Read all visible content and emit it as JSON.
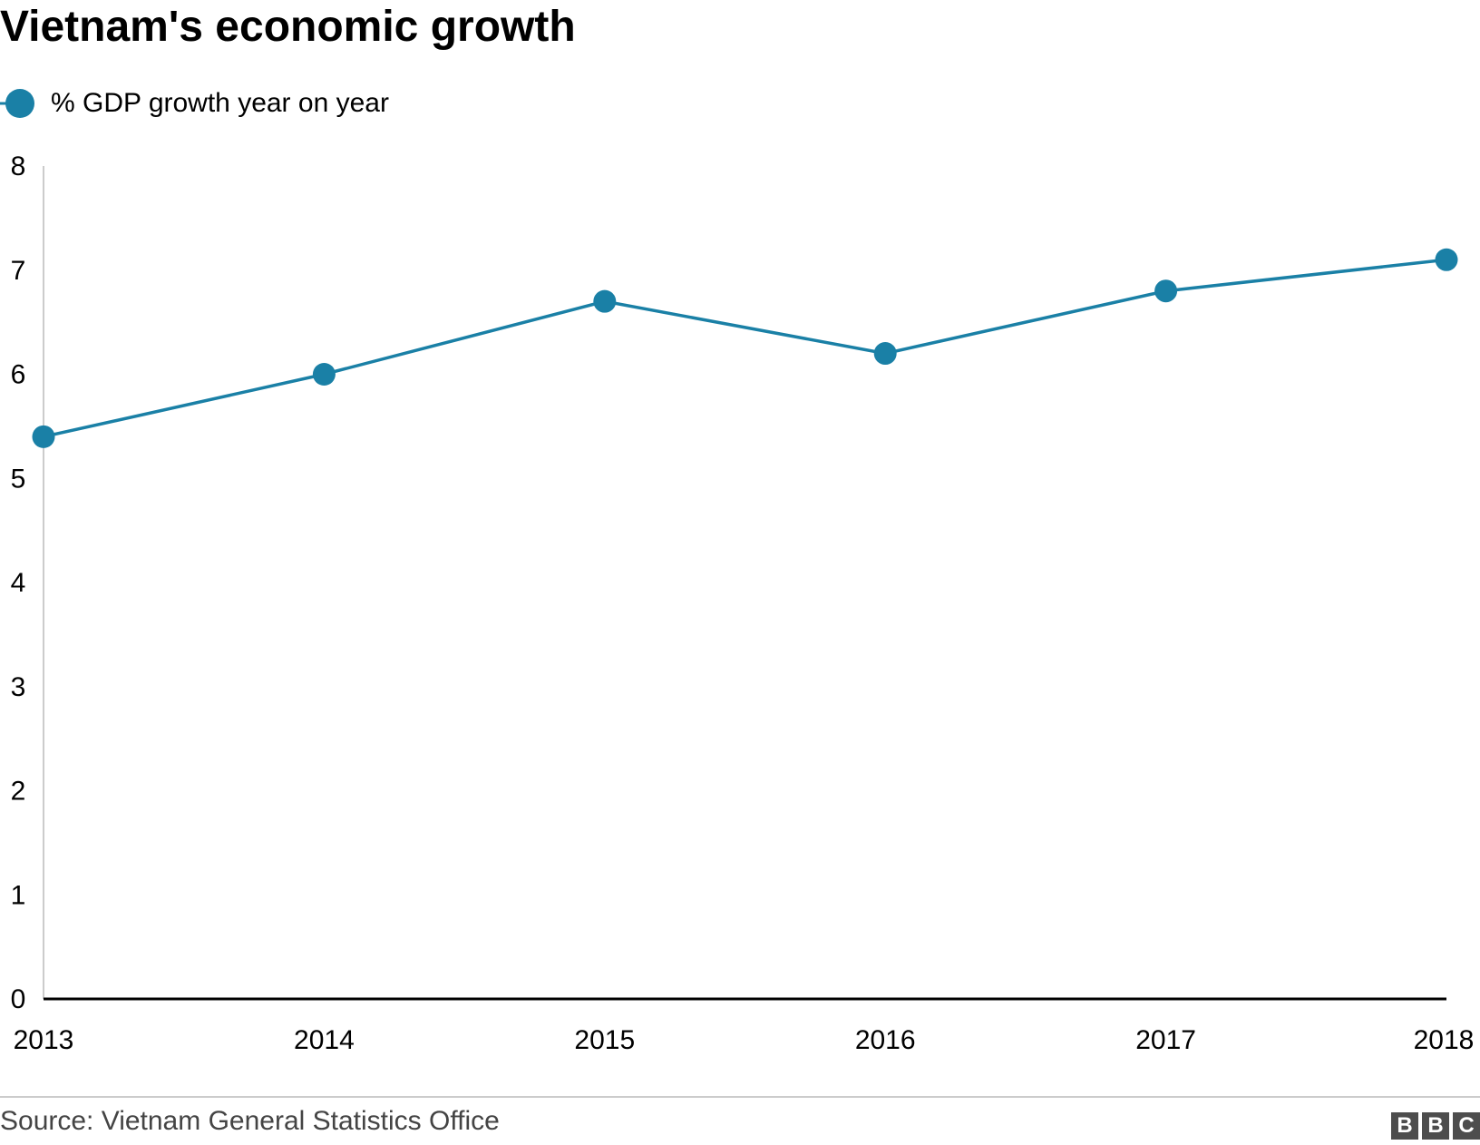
{
  "chart_data": {
    "type": "line",
    "title": "Vietnam's economic growth",
    "xlabel": "",
    "ylabel": "",
    "categories": [
      "2013",
      "2014",
      "2015",
      "2016",
      "2017",
      "2018"
    ],
    "series": [
      {
        "name": "% GDP growth year on year",
        "color": "#1a80a6",
        "values": [
          5.4,
          6.0,
          6.7,
          6.2,
          6.8,
          7.1
        ]
      }
    ],
    "ylim": [
      0,
      8
    ],
    "yticks": [
      "0",
      "1",
      "2",
      "3",
      "4",
      "5",
      "6",
      "7",
      "8"
    ],
    "grid": false,
    "legend_position": "top-left"
  },
  "footer": {
    "source": "Source: Vietnam General Statistics Office",
    "logo_letters": [
      "B",
      "B",
      "C"
    ]
  }
}
